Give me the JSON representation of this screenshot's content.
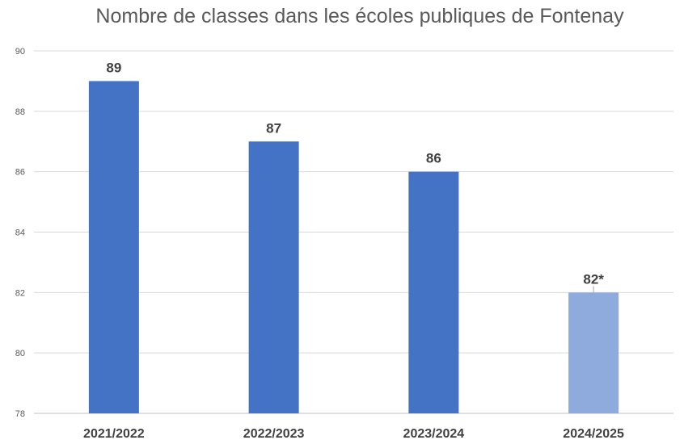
{
  "chart_data": {
    "type": "bar",
    "title": "Nombre de classes dans les écoles publiques de Fontenay",
    "categories": [
      "2021/2022",
      "2022/2023",
      "2023/2024",
      "2024/2025"
    ],
    "values": [
      89,
      87,
      86,
      82
    ],
    "data_labels": [
      "89",
      "87",
      "86",
      "82*"
    ],
    "ylim": [
      78,
      90
    ],
    "yticks": [
      78,
      80,
      82,
      84,
      86,
      88,
      90
    ],
    "grid": true,
    "legend": "none",
    "colors": [
      "#4472C4",
      "#4472C4",
      "#4472C4",
      "#8FAADC"
    ]
  },
  "colors": {
    "grid": "#D9D9D9",
    "title": "#595959",
    "tick": "#595959",
    "label": "#404040"
  }
}
